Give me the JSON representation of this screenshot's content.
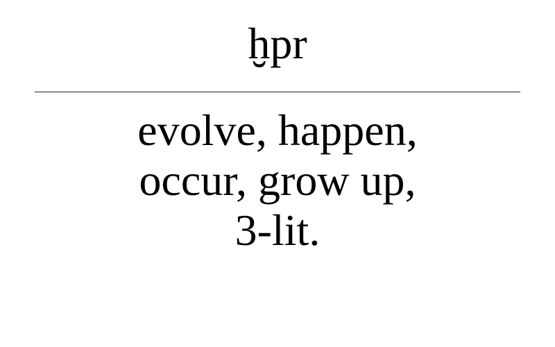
{
  "card": {
    "term": "ḫpr",
    "definition_lines": [
      "evolve, happen,",
      "occur, grow up,",
      "3-lit."
    ]
  }
}
